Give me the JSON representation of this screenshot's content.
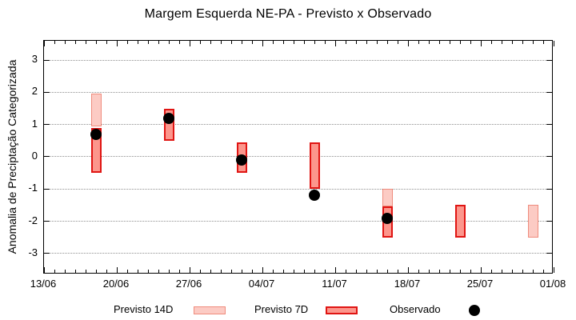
{
  "legend": {
    "items": [
      {
        "label": "Previsto 14D",
        "swatch": "previsto-14d-swatch"
      },
      {
        "label": "Previsto 7D",
        "swatch": "previsto-7d-swatch"
      },
      {
        "label": "Observado",
        "swatch": "observado-dot"
      }
    ]
  },
  "colors": {
    "previsto_14d_fill": "#fccbc4",
    "previsto_14d_border": "#ef8c7d",
    "previsto_7d_fill": "#fc968c",
    "previsto_7d_border": "#e01513",
    "observado": "#000000",
    "grid": "#909090",
    "axis": "#000000"
  },
  "chart_data": {
    "type": "bar",
    "title": "Margem Esquerda NE-PA - Previsto x Observado",
    "xlabel": "",
    "ylabel": "Anomalia de Preciptação Categorizada",
    "ylim": [
      -3.65,
      3.6
    ],
    "y_ticks": [
      3,
      2,
      1,
      0,
      -1,
      -2,
      -3
    ],
    "x_ticks": [
      "13/06",
      "20/06",
      "27/06",
      "04/07",
      "11/07",
      "18/07",
      "25/07",
      "01/08"
    ],
    "x_range_days": 49,
    "x_major_every_days": 7,
    "grid": "horizontal-dotted",
    "legend_position": "bottom",
    "groups": [
      {
        "date": "18/06",
        "day_offset": 5,
        "previsto_14d": [
          0.95,
          1.95
        ],
        "previsto_7d": [
          -0.5,
          0.9
        ],
        "observado": 0.7
      },
      {
        "date": "25/06",
        "day_offset": 12,
        "previsto_7d": [
          0.5,
          1.5
        ],
        "observado": 1.2
      },
      {
        "date": "02/07",
        "day_offset": 19,
        "previsto_7d": [
          -0.5,
          0.45
        ],
        "observado": -0.1
      },
      {
        "date": "09/07",
        "day_offset": 26,
        "previsto_7d": [
          -1.0,
          0.45
        ],
        "observado": -1.2
      },
      {
        "date": "16/07",
        "day_offset": 33,
        "previsto_14d": [
          -1.55,
          -1.0
        ],
        "previsto_7d": [
          -2.5,
          -1.55
        ],
        "observado": -1.9
      },
      {
        "date": "23/07",
        "day_offset": 40,
        "previsto_7d": [
          -2.5,
          -1.5
        ]
      },
      {
        "date": "30/07",
        "day_offset": 47,
        "previsto_14d": [
          -2.5,
          -1.5
        ]
      }
    ]
  }
}
